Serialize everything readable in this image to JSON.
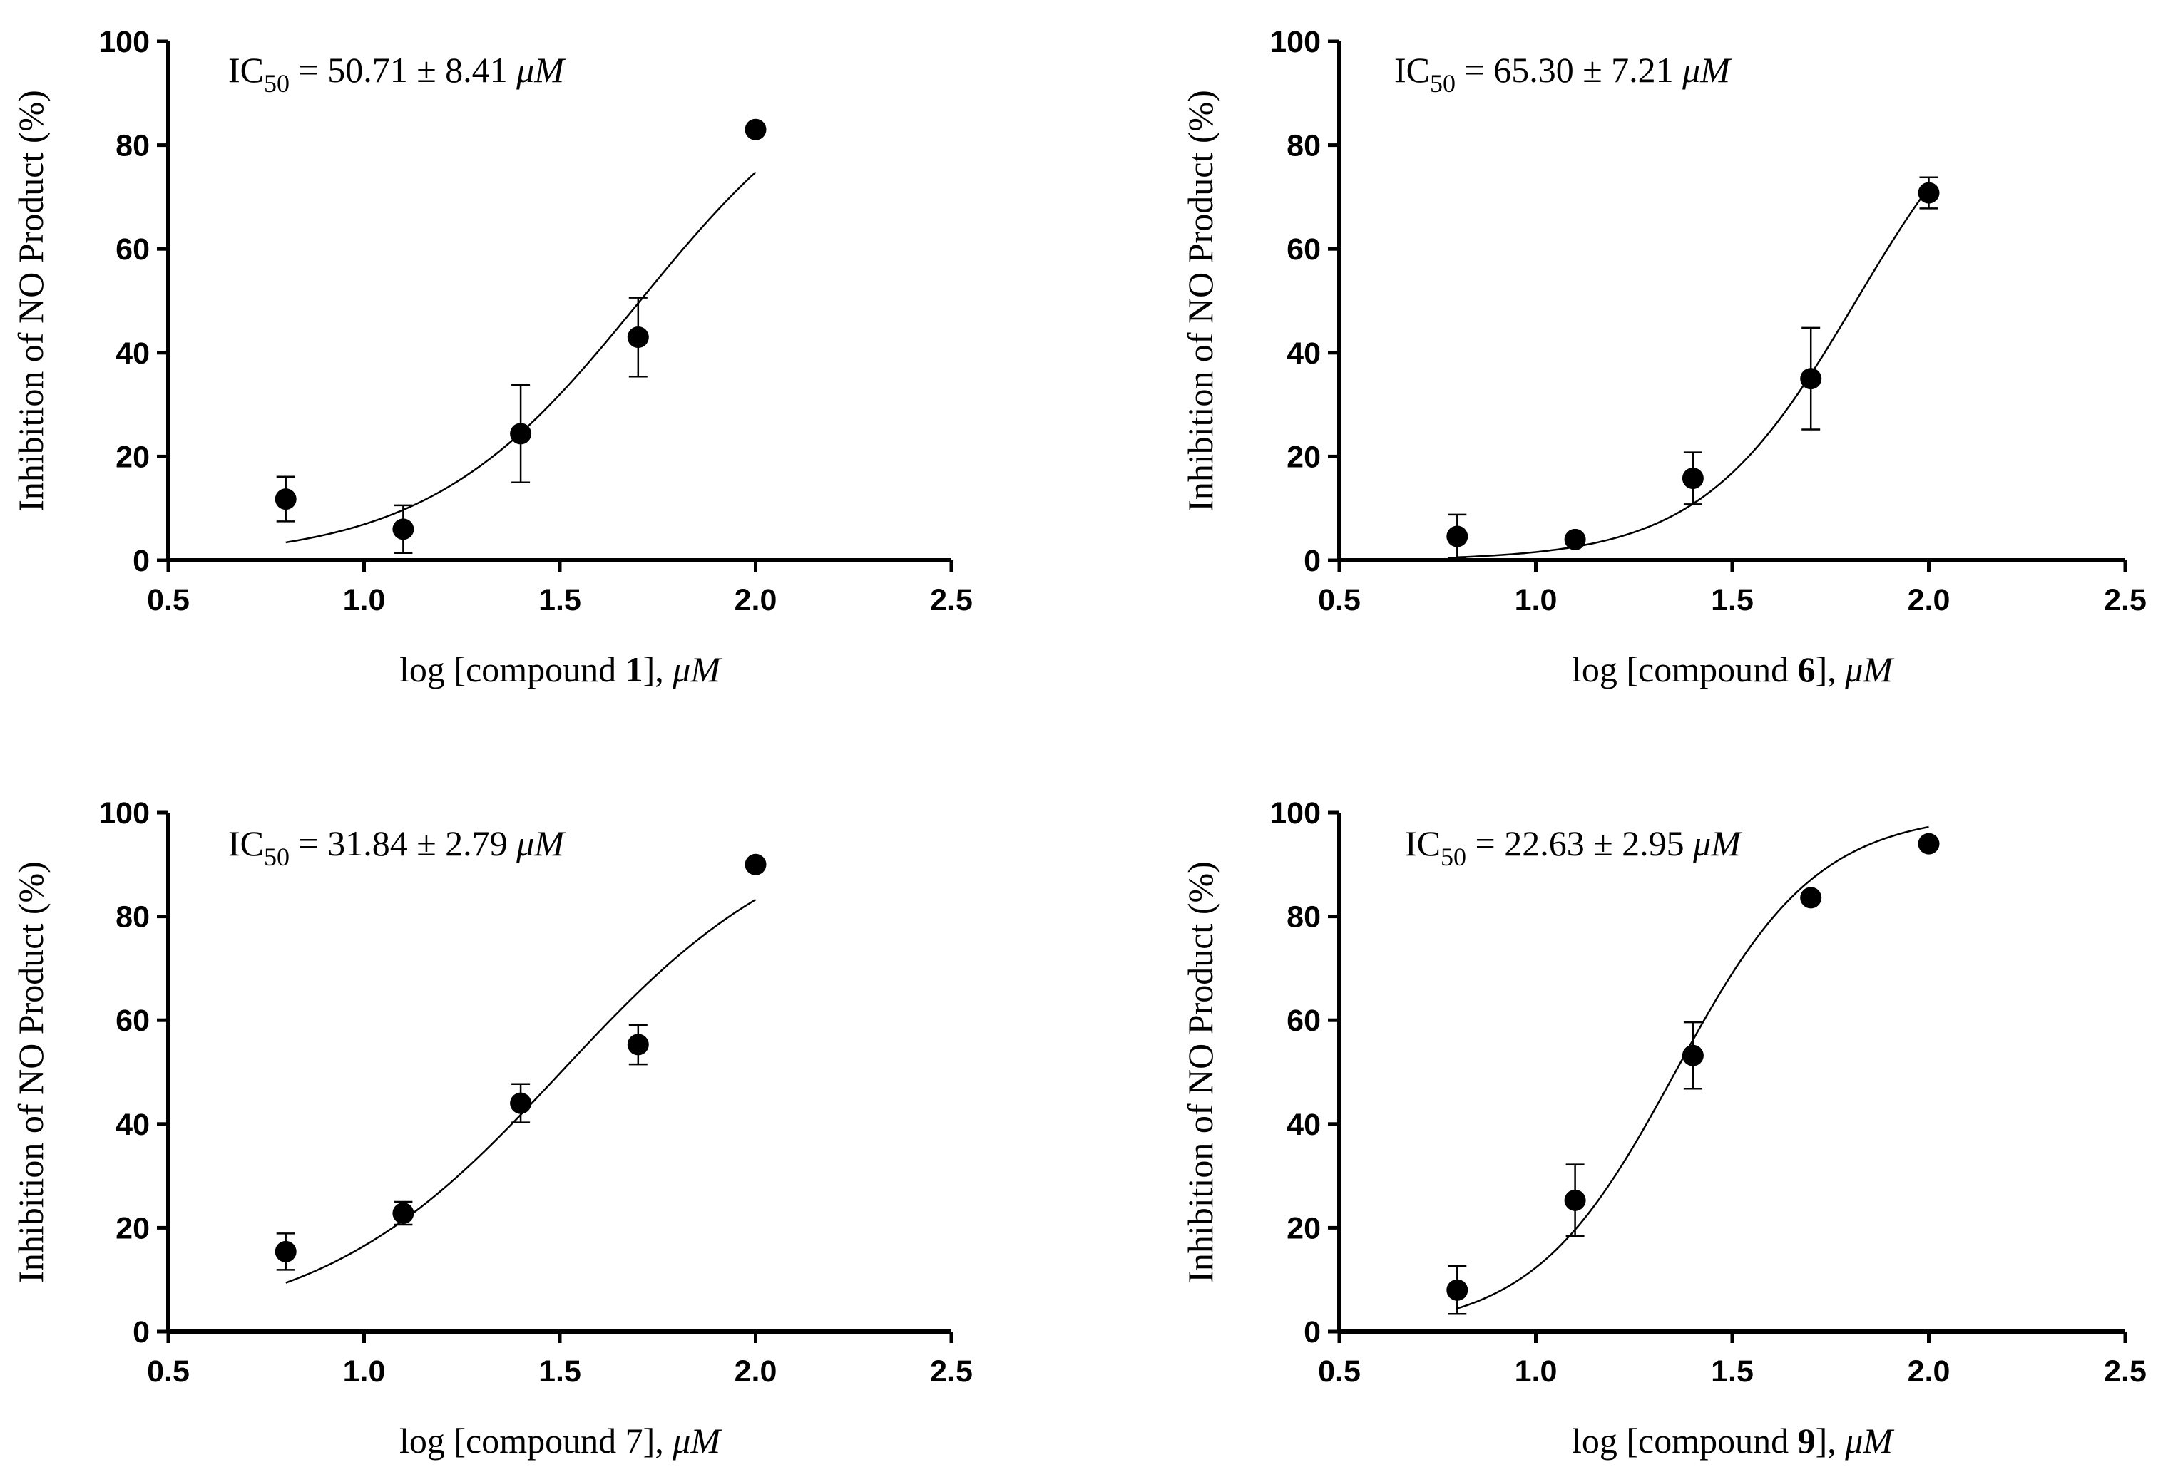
{
  "colors": {
    "ink": "#000000",
    "background": "#ffffff"
  },
  "chart_data": [
    {
      "type": "scatter",
      "title": "",
      "ic50": {
        "prefix": "IC",
        "sub": "50",
        "text": " = 50.71 ± 8.41  ",
        "unit": "μM"
      },
      "xlabel": {
        "before": "log [compound ",
        "bold": "1",
        "after": "], ",
        "unit": "μM"
      },
      "ylabel": "Inhibition of NO Product (%)",
      "xlim": [
        0.5,
        2.5
      ],
      "ylim": [
        0,
        100
      ],
      "xticks": [
        "0.5",
        "1.0",
        "1.5",
        "2.0",
        "2.5"
      ],
      "yticks": [
        "0",
        "20",
        "40",
        "60",
        "80",
        "100"
      ],
      "x": [
        0.8,
        1.1,
        1.4,
        1.7,
        2.0
      ],
      "y": [
        11.8,
        6.0,
        24.4,
        43.0,
        83.0
      ],
      "err": [
        4.3,
        4.6,
        9.4,
        7.6,
        0
      ],
      "fit": {
        "top": 100,
        "bottom": 0,
        "log_ic50": 1.705,
        "hill": 1.6,
        "x_range": [
          0.8,
          2.0
        ]
      }
    },
    {
      "type": "scatter",
      "title": "",
      "ic50": {
        "prefix": "IC",
        "sub": "50",
        "text": " = 65.30 ± 7.21  ",
        "unit": "μM"
      },
      "xlabel": {
        "before": "log [compound ",
        "bold": "6",
        "after": "], ",
        "unit": "μM"
      },
      "ylabel": "Inhibition of NO Product (%)",
      "xlim": [
        0.5,
        2.5
      ],
      "ylim": [
        0,
        100
      ],
      "xticks": [
        "0.5",
        "1.0",
        "1.5",
        "2.0",
        "2.5"
      ],
      "yticks": [
        "0",
        "20",
        "40",
        "60",
        "80",
        "100"
      ],
      "x": [
        0.8,
        1.1,
        1.4,
        1.7,
        2.0
      ],
      "y": [
        4.6,
        4.0,
        15.8,
        35.0,
        70.8
      ],
      "err": [
        4.2,
        0,
        5.0,
        9.8,
        3.0
      ],
      "fit": {
        "top": 100,
        "bottom": 0,
        "log_ic50": 1.815,
        "hill": 2.2,
        "x_range": [
          0.8,
          2.0
        ]
      }
    },
    {
      "type": "scatter",
      "title": "",
      "ic50": {
        "prefix": "IC",
        "sub": "50",
        "text": " = 31.84 ± 2.79 ",
        "unit": "μM"
      },
      "xlabel": {
        "before": "log [compound 7], ",
        "bold": "",
        "after": "",
        "unit": "μM"
      },
      "ylabel": "Inhibition of NO Product (%)",
      "xlim": [
        0.5,
        2.5
      ],
      "ylim": [
        0,
        100
      ],
      "xticks": [
        "0.5",
        "1.0",
        "1.5",
        "2.0",
        "2.5"
      ],
      "yticks": [
        "0",
        "20",
        "40",
        "60",
        "80",
        "100"
      ],
      "x": [
        0.8,
        1.1,
        1.4,
        1.7,
        2.0
      ],
      "y": [
        15.4,
        22.8,
        44.0,
        55.3,
        90.0
      ],
      "err": [
        3.5,
        2.2,
        3.7,
        3.8,
        0
      ],
      "fit": {
        "top": 100,
        "bottom": 0,
        "log_ic50": 1.503,
        "hill": 1.4,
        "x_range": [
          0.8,
          2.0
        ]
      }
    },
    {
      "type": "scatter",
      "title": "",
      "ic50": {
        "prefix": "IC",
        "sub": "50",
        "text": " = 22.63 ± 2.95  ",
        "unit": "μM"
      },
      "xlabel": {
        "before": "log [compound ",
        "bold": "9",
        "after": "], ",
        "unit": "μM"
      },
      "ylabel": "Inhibition of NO Product (%)",
      "xlim": [
        0.5,
        2.5
      ],
      "ylim": [
        0,
        100
      ],
      "xticks": [
        "0.5",
        "1.0",
        "1.5",
        "2.0",
        "2.5"
      ],
      "yticks": [
        "0",
        "20",
        "40",
        "60",
        "80",
        "100"
      ],
      "x": [
        0.8,
        1.1,
        1.4,
        1.7,
        2.0
      ],
      "y": [
        8.0,
        25.3,
        53.2,
        83.6,
        94.0
      ],
      "err": [
        4.6,
        6.9,
        6.4,
        0,
        0
      ],
      "fit": {
        "top": 100,
        "bottom": 0,
        "log_ic50": 1.355,
        "hill": 2.4,
        "x_range": [
          0.8,
          2.0
        ]
      }
    }
  ]
}
